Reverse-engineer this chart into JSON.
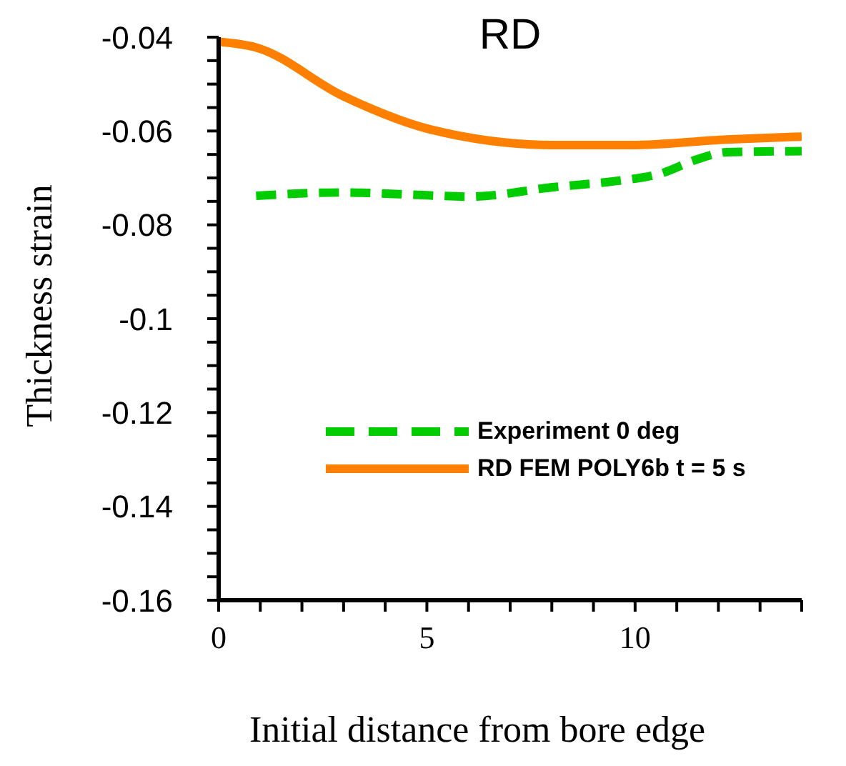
{
  "chart_data": {
    "type": "line",
    "title": "RD",
    "xlabel": "Initial distance from bore edge",
    "ylabel": "Thickness strain",
    "xlim": [
      0,
      14
    ],
    "ylim": [
      -0.16,
      -0.04
    ],
    "xticks": [
      0,
      {
        "value": 1,
        "label": null
      },
      {
        "value": 2,
        "label": null
      },
      {
        "value": 3,
        "label": null
      },
      {
        "value": 4,
        "label": null
      },
      5,
      {
        "value": 6,
        "label": null
      },
      {
        "value": 7,
        "label": null
      },
      {
        "value": 8,
        "label": null
      },
      {
        "value": 9,
        "label": null
      },
      10,
      {
        "value": 11,
        "label": null
      },
      {
        "value": 12,
        "label": null
      },
      {
        "value": 13,
        "label": null
      },
      {
        "value": 14,
        "label": null
      }
    ],
    "yticks": [
      -0.16,
      {
        "value": -0.155,
        "label": null
      },
      {
        "value": -0.15,
        "label": null
      },
      {
        "value": -0.145,
        "label": null
      },
      -0.14,
      {
        "value": -0.135,
        "label": null
      },
      {
        "value": -0.13,
        "label": null
      },
      {
        "value": -0.125,
        "label": null
      },
      -0.12,
      {
        "value": -0.115,
        "label": null
      },
      {
        "value": -0.11,
        "label": null
      },
      {
        "value": -0.105,
        "label": null
      },
      -0.1,
      {
        "value": -0.095,
        "label": null
      },
      {
        "value": -0.09,
        "label": null
      },
      {
        "value": -0.085,
        "label": null
      },
      -0.08,
      {
        "value": -0.075,
        "label": null
      },
      {
        "value": -0.07,
        "label": null
      },
      {
        "value": -0.065,
        "label": null
      },
      -0.06,
      {
        "value": -0.055,
        "label": null
      },
      {
        "value": -0.05,
        "label": null
      },
      {
        "value": -0.045,
        "label": null
      },
      -0.04
    ],
    "grid": false,
    "legend": "bottom right",
    "marker": "none",
    "series": [
      {
        "name": "Experiment 0 deg",
        "color": "#00cc00",
        "line_style": "dashed",
        "x": [
          0.9,
          3,
          5,
          6,
          8.1,
          9.5,
          10.6,
          11.5,
          12.2,
          14
        ],
        "values": [
          -0.0738,
          -0.0731,
          -0.0737,
          -0.074,
          -0.0719,
          -0.0707,
          -0.0691,
          -0.066,
          -0.0645,
          -0.0643
        ]
      },
      {
        "name": "RD FEM POLY6b t = 5 s",
        "color": "#ff8000",
        "line_style": "solid",
        "x": [
          0,
          0.9,
          3,
          5.1,
          8.1,
          9.9,
          12.2,
          14
        ],
        "values": [
          -0.041,
          -0.0422,
          -0.0526,
          -0.0597,
          -0.063,
          -0.063,
          -0.0618,
          -0.0612
        ]
      }
    ]
  }
}
